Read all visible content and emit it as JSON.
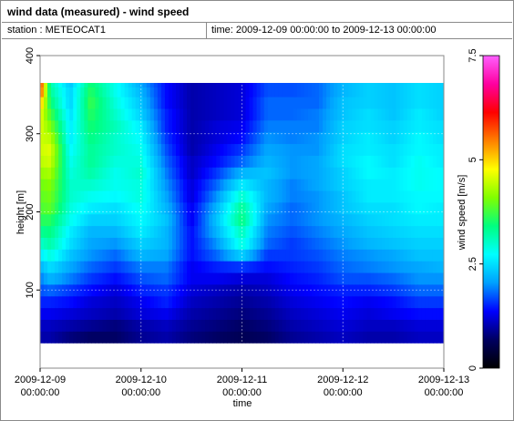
{
  "header": {
    "title": "wind data (measured) - wind speed",
    "station": "station : METEOCAT1",
    "time_range": "time: 2009-12-09 00:00:00 to 2009-12-13 00:00:00"
  },
  "chart_data": {
    "type": "heatmap",
    "xlabel": "time",
    "ylabel": "height [m]",
    "x_ticks": [
      {
        "date": "2009-12-09",
        "time": "00:00:00"
      },
      {
        "date": "2009-12-10",
        "time": "00:00:00"
      },
      {
        "date": "2009-12-11",
        "time": "00:00:00"
      },
      {
        "date": "2009-12-12",
        "time": "00:00:00"
      },
      {
        "date": "2009-12-13",
        "time": "00:00:00"
      }
    ],
    "xlim": [
      "2009-12-09 00:00:00",
      "2009-12-13 00:00:00"
    ],
    "y_ticks": [
      100,
      200,
      300,
      400
    ],
    "ylim": [
      0,
      400
    ],
    "colorbar": {
      "label": "wind speed [m/s]",
      "ticks": [
        0,
        2.5,
        5,
        7.5
      ],
      "range": [
        0,
        7.5
      ],
      "colormap": [
        "#000000",
        "#000060",
        "#0000ff",
        "#00a0ff",
        "#00ffff",
        "#00ff80",
        "#80ff00",
        "#ffff00",
        "#ff8000",
        "#ff0000",
        "#ff00a0",
        "#ff60ff"
      ]
    },
    "grid": true,
    "heights_m": [
      40,
      55,
      70,
      85,
      100,
      115,
      130,
      145,
      160,
      175,
      190,
      205,
      220,
      235,
      250,
      265,
      280,
      295,
      310,
      325,
      340,
      355,
      365
    ],
    "profiles": [
      {
        "day": 0.0,
        "speed": [
          1.0,
          1.1,
          1.3,
          1.5,
          1.7,
          1.9,
          2.2,
          2.6,
          3.0,
          3.3,
          3.6,
          3.8,
          3.9,
          4.0,
          4.2,
          4.4,
          4.5,
          4.5,
          4.6,
          4.7,
          5.2,
          5.8,
          6.0
        ]
      },
      {
        "day": 0.1,
        "speed": [
          1.0,
          1.1,
          1.3,
          1.5,
          1.8,
          2.2,
          2.5,
          2.9,
          3.2,
          3.4,
          3.6,
          3.9,
          4.0,
          4.1,
          4.3,
          4.5,
          4.6,
          4.4,
          4.1,
          3.8,
          3.5,
          3.3,
          3.2
        ]
      },
      {
        "day": 0.3,
        "speed": [
          0.8,
          1.0,
          1.2,
          1.4,
          1.6,
          1.9,
          2.1,
          2.3,
          2.5,
          2.6,
          2.8,
          2.9,
          3.0,
          3.0,
          2.9,
          2.8,
          2.7,
          2.6,
          2.6,
          2.5,
          2.4,
          2.4,
          2.3
        ]
      },
      {
        "day": 0.5,
        "speed": [
          0.7,
          0.9,
          1.1,
          1.2,
          1.4,
          1.6,
          1.8,
          2.0,
          2.1,
          2.2,
          2.4,
          2.6,
          2.8,
          3.0,
          3.2,
          3.3,
          3.3,
          3.4,
          3.5,
          3.6,
          3.7,
          3.6,
          3.5
        ]
      },
      {
        "day": 0.75,
        "speed": [
          0.7,
          0.8,
          1.0,
          1.1,
          1.2,
          1.4,
          1.6,
          1.8,
          2.0,
          2.2,
          2.4,
          2.5,
          2.7,
          2.8,
          2.8,
          2.9,
          3.0,
          3.0,
          3.1,
          3.0,
          2.9,
          2.8,
          2.8
        ]
      },
      {
        "day": 1.0,
        "speed": [
          0.9,
          1.0,
          1.2,
          1.3,
          1.5,
          1.7,
          1.9,
          2.2,
          2.4,
          2.6,
          2.7,
          2.8,
          2.9,
          2.9,
          3.0,
          2.9,
          2.8,
          2.7,
          2.6,
          2.4,
          2.3,
          2.2,
          2.1
        ]
      },
      {
        "day": 1.25,
        "speed": [
          1.0,
          1.1,
          1.3,
          1.5,
          1.6,
          1.8,
          1.9,
          2.1,
          2.2,
          2.2,
          2.3,
          2.2,
          2.1,
          2.0,
          1.9,
          1.8,
          1.7,
          1.6,
          1.5,
          1.5,
          1.4,
          1.4,
          1.4
        ]
      },
      {
        "day": 1.5,
        "speed": [
          0.8,
          0.9,
          1.0,
          1.1,
          1.2,
          1.3,
          1.3,
          1.4,
          1.4,
          1.4,
          1.3,
          1.3,
          1.2,
          1.2,
          1.1,
          1.1,
          1.0,
          1.0,
          1.0,
          1.0,
          1.0,
          1.0,
          1.0
        ]
      },
      {
        "day": 1.75,
        "speed": [
          0.7,
          0.8,
          0.9,
          1.0,
          1.1,
          1.3,
          1.5,
          1.8,
          2.0,
          2.2,
          2.3,
          2.2,
          2.0,
          1.8,
          1.6,
          1.4,
          1.3,
          1.2,
          1.2,
          1.1,
          1.1,
          1.1,
          1.1
        ]
      },
      {
        "day": 2.0,
        "speed": [
          0.6,
          0.7,
          0.8,
          0.9,
          1.0,
          1.2,
          1.6,
          2.4,
          2.9,
          3.1,
          3.4,
          3.3,
          3.0,
          2.6,
          2.2,
          1.8,
          1.6,
          1.4,
          1.3,
          1.2,
          1.2,
          1.2,
          1.2
        ]
      },
      {
        "day": 2.25,
        "speed": [
          0.7,
          0.8,
          0.9,
          1.0,
          1.1,
          1.2,
          1.4,
          1.6,
          1.8,
          1.9,
          2.0,
          2.1,
          2.2,
          2.2,
          2.3,
          2.2,
          2.1,
          2.0,
          1.9,
          1.8,
          1.8,
          1.7,
          1.7
        ]
      },
      {
        "day": 2.5,
        "speed": [
          0.9,
          1.0,
          1.1,
          1.2,
          1.3,
          1.4,
          1.5,
          1.6,
          1.6,
          1.7,
          1.8,
          1.8,
          1.9,
          1.9,
          2.0,
          2.0,
          2.0,
          1.9,
          1.9,
          1.8,
          1.8,
          1.7,
          1.7
        ]
      },
      {
        "day": 2.75,
        "speed": [
          1.0,
          1.1,
          1.2,
          1.3,
          1.4,
          1.5,
          1.6,
          1.7,
          1.8,
          1.9,
          2.0,
          2.0,
          2.0,
          2.1,
          2.1,
          2.1,
          2.0,
          2.0,
          1.9,
          1.9,
          1.8,
          1.8,
          1.8
        ]
      },
      {
        "day": 3.0,
        "speed": [
          1.1,
          1.2,
          1.3,
          1.4,
          1.5,
          1.7,
          1.8,
          1.9,
          2.0,
          2.1,
          2.2,
          2.3,
          2.3,
          2.4,
          2.4,
          2.5,
          2.5,
          2.4,
          2.4,
          2.3,
          2.3,
          2.2,
          2.2
        ]
      },
      {
        "day": 3.25,
        "speed": [
          1.0,
          1.1,
          1.2,
          1.3,
          1.5,
          1.7,
          1.9,
          2.0,
          2.2,
          2.3,
          2.4,
          2.5,
          2.6,
          2.6,
          2.7,
          2.7,
          2.6,
          2.6,
          2.5,
          2.5,
          2.4,
          2.4,
          2.4
        ]
      },
      {
        "day": 3.5,
        "speed": [
          1.0,
          1.1,
          1.3,
          1.4,
          1.6,
          1.8,
          2.0,
          2.1,
          2.3,
          2.4,
          2.5,
          2.5,
          2.6,
          2.6,
          2.6,
          2.5,
          2.5,
          2.4,
          2.4,
          2.3,
          2.3,
          2.3,
          2.3
        ]
      },
      {
        "day": 3.75,
        "speed": [
          1.1,
          1.2,
          1.4,
          1.6,
          1.8,
          2.0,
          2.1,
          2.3,
          2.4,
          2.5,
          2.6,
          2.7,
          2.7,
          2.8,
          2.8,
          2.8,
          2.7,
          2.7,
          2.6,
          2.6,
          2.5,
          2.5,
          2.5
        ]
      },
      {
        "day": 4.0,
        "speed": [
          1.1,
          1.2,
          1.4,
          1.6,
          1.8,
          2.0,
          2.2,
          2.3,
          2.4,
          2.5,
          2.6,
          2.6,
          2.7,
          2.7,
          2.7,
          2.6,
          2.6,
          2.5,
          2.5,
          2.4,
          2.4,
          2.4,
          2.4
        ]
      }
    ]
  }
}
